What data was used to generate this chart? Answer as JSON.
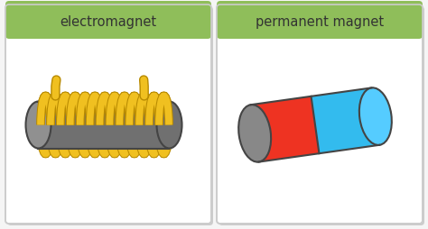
{
  "background": "#f5f5f5",
  "card_bg": "#ffffff",
  "card_border": "#cccccc",
  "header_color": "#8fbe5a",
  "header_text_color": "#333333",
  "label_left": "electromagnet",
  "label_right": "permanent magnet",
  "coil_color": "#f0c020",
  "coil_outline": "#b88a00",
  "core_color": "#707070",
  "core_outline": "#444444",
  "magnet_red": "#ee3322",
  "magnet_blue": "#33bbee",
  "magnet_end_blue": "#55ccff",
  "magnet_gray": "#888888",
  "magnet_outline": "#444444"
}
